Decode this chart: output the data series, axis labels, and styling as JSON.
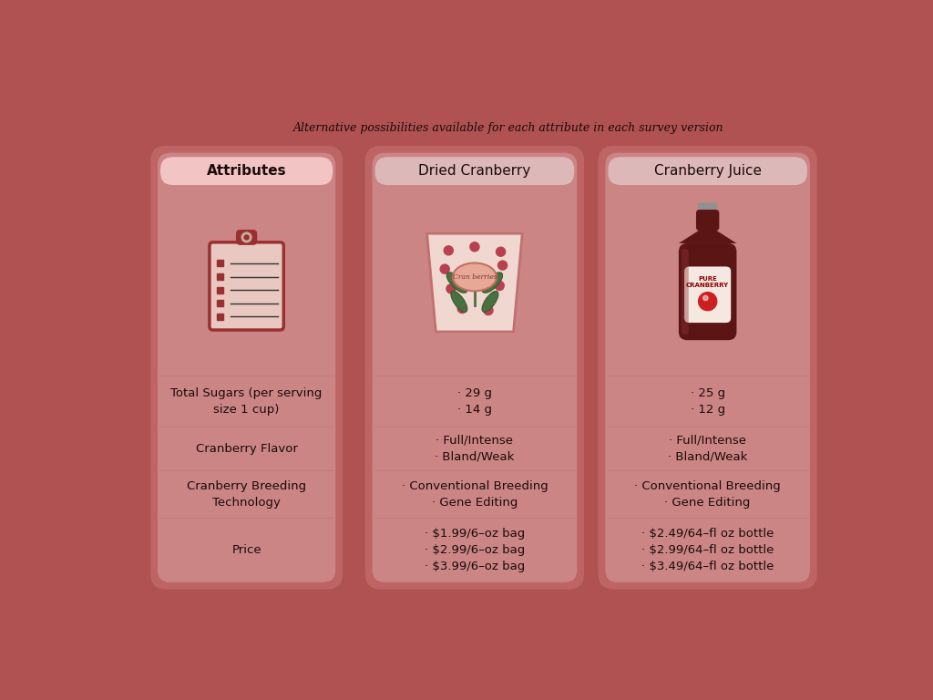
{
  "background_color": "#b05252",
  "card_outer_color": "#be6464",
  "card_inner_color": "#cc8585",
  "header_attr_color": "#f2c4c4",
  "header_col_color": "#ddb8b8",
  "subtitle": "Alternative possibilities available for each attribute in each survey version",
  "col_headers": [
    "Attributes",
    "Dried Cranberry",
    "Cranberry Juice"
  ],
  "row_labels": [
    "Total Sugars (per serving\nsize 1 cup)",
    "Cranberry Flavor",
    "Cranberry Breeding\nTechnology",
    "Price"
  ],
  "dried_cranberry_data": [
    "· 29 g\n· 14 g",
    "· Full/Intense\n· Bland/Weak",
    "· Conventional Breeding\n· Gene Editing",
    "· $1.99/6–oz bag\n· $2.99/6–oz bag\n· $3.99/6–oz bag"
  ],
  "cranberry_juice_data": [
    "· 25 g\n· 12 g",
    "· Full/Intense\n· Bland/Weak",
    "· Conventional Breeding\n· Gene Editing",
    "· $2.49/64–fl oz bottle\n· $2.99/64–fl oz bottle\n· $3.49/64–fl oz bottle"
  ],
  "text_color": "#1a0a0a",
  "divider_color": "#b87878",
  "header_text_color": "#1a0a0a",
  "subtitle_color": "#1a0a0a"
}
